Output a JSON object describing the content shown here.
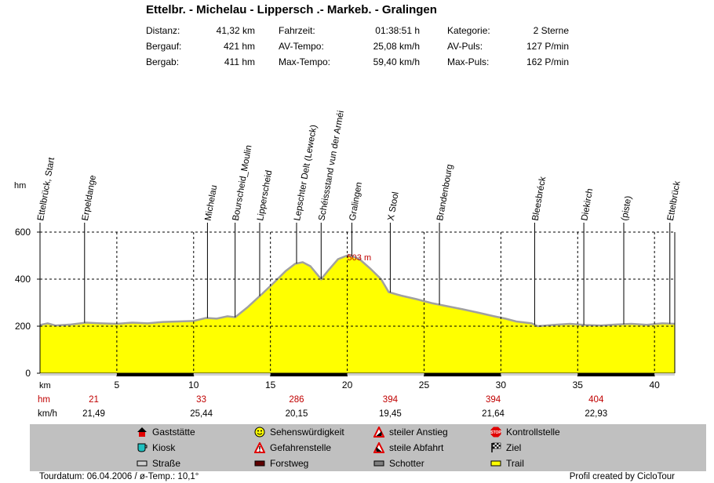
{
  "title": "Ettelbr. - Michelau - Lippersch .- Markeb. - Gralingen",
  "stats": {
    "col1": [
      {
        "label": "Distanz:",
        "value": "41,32 km"
      },
      {
        "label": "Bergauf:",
        "value": "421 hm"
      },
      {
        "label": "Bergab:",
        "value": "411 hm"
      }
    ],
    "col2": [
      {
        "label": "Fahrzeit:",
        "value": "01:38:51 h"
      },
      {
        "label": "AV-Tempo:",
        "value": "25,08 km/h"
      },
      {
        "label": "Max-Tempo:",
        "value": "59,40 km/h"
      }
    ],
    "col3": [
      {
        "label": "Kategorie:",
        "value": "2 Sterne"
      },
      {
        "label": "AV-Puls:",
        "value": "127 P/min"
      },
      {
        "label": "Max-Puls:",
        "value": "162 P/min"
      }
    ]
  },
  "chart_data": {
    "type": "area",
    "ylabel": "hm",
    "xlabel": "km",
    "ylim": [
      0,
      600
    ],
    "xlim": [
      0,
      41.32
    ],
    "yticks": [
      "0",
      "200",
      "400",
      "600"
    ],
    "xticks": [
      "5",
      "10",
      "15",
      "20",
      "25",
      "30",
      "35",
      "40"
    ],
    "max_label": "503 m",
    "max_at_km": 20.1,
    "fill_color": "#ffff00",
    "line_color": "#a0a0a0",
    "profile": [
      [
        0,
        205
      ],
      [
        0.5,
        212
      ],
      [
        1,
        203
      ],
      [
        2,
        207
      ],
      [
        3,
        215
      ],
      [
        4,
        212
      ],
      [
        5,
        210
      ],
      [
        6,
        215
      ],
      [
        7,
        212
      ],
      [
        8,
        218
      ],
      [
        9,
        220
      ],
      [
        10,
        222
      ],
      [
        10.8,
        235
      ],
      [
        11.5,
        232
      ],
      [
        12.2,
        242
      ],
      [
        12.7,
        238
      ],
      [
        13.5,
        280
      ],
      [
        14.5,
        340
      ],
      [
        15.3,
        390
      ],
      [
        16,
        435
      ],
      [
        16.6,
        465
      ],
      [
        17.1,
        472
      ],
      [
        17.6,
        455
      ],
      [
        18.3,
        400
      ],
      [
        18.8,
        440
      ],
      [
        19.4,
        485
      ],
      [
        20.1,
        503
      ],
      [
        20.8,
        485
      ],
      [
        21.5,
        445
      ],
      [
        22.2,
        400
      ],
      [
        22.7,
        345
      ],
      [
        23.5,
        330
      ],
      [
        24.5,
        315
      ],
      [
        25.5,
        298
      ],
      [
        26.5,
        285
      ],
      [
        27.5,
        272
      ],
      [
        28.5,
        258
      ],
      [
        29.5,
        243
      ],
      [
        30.3,
        232
      ],
      [
        31,
        220
      ],
      [
        32,
        212
      ],
      [
        32.4,
        200
      ],
      [
        33.5,
        206
      ],
      [
        34.5,
        210
      ],
      [
        35.5,
        205
      ],
      [
        36.5,
        203
      ],
      [
        37.5,
        207
      ],
      [
        38.5,
        210
      ],
      [
        39.5,
        206
      ],
      [
        40.5,
        212
      ],
      [
        41.32,
        210
      ]
    ],
    "surface_segments": [
      {
        "type": "Forstweg",
        "from": 5,
        "to": 10
      },
      {
        "type": "Forstweg",
        "from": 15,
        "to": 20
      },
      {
        "type": "Forstweg",
        "from": 25,
        "to": 30
      },
      {
        "type": "Forstweg",
        "from": 35,
        "to": 40
      }
    ],
    "waypoints": [
      {
        "name": "Ettelbrück, Start",
        "km": 0
      },
      {
        "name": "Erpeldange",
        "km": 2.9
      },
      {
        "name": "Michelau",
        "km": 10.9
      },
      {
        "name": "Bourscheid_Moulin",
        "km": 12.7
      },
      {
        "name": "Lipperscheid",
        "km": 14.3
      },
      {
        "name": "Lepschter Delt (Leweck)",
        "km": 16.7
      },
      {
        "name": "Schéissstand vun der Arméi",
        "km": 18.3
      },
      {
        "name": "Gralingen",
        "km": 20.3
      },
      {
        "name": "X Stool",
        "km": 22.8
      },
      {
        "name": "Brandenbourg",
        "km": 26
      },
      {
        "name": "Bleesbréck",
        "km": 32.2
      },
      {
        "name": "Diekirch",
        "km": 35.4
      },
      {
        "name": "(piste)",
        "km": 38
      },
      {
        "name": "Ettelbrück",
        "km": 41
      }
    ],
    "rows": [
      {
        "label": "hm",
        "values": [
          {
            "km": 3.5,
            "v": "21"
          },
          {
            "km": 10.5,
            "v": "33"
          },
          {
            "km": 16.7,
            "v": "286"
          },
          {
            "km": 22.8,
            "v": "394"
          },
          {
            "km": 29.5,
            "v": "394"
          },
          {
            "km": 36.2,
            "v": "404"
          }
        ]
      },
      {
        "label": "km/h",
        "values": [
          {
            "km": 3.5,
            "v": "21,49"
          },
          {
            "km": 10.5,
            "v": "25,44"
          },
          {
            "km": 16.7,
            "v": "20,15"
          },
          {
            "km": 22.8,
            "v": "19,45"
          },
          {
            "km": 29.5,
            "v": "21,64"
          },
          {
            "km": 36.2,
            "v": "22,93"
          }
        ]
      }
    ]
  },
  "legend": [
    {
      "icon": "house-icon",
      "label": "Gaststätte"
    },
    {
      "icon": "cup-icon",
      "label": "Kiosk"
    },
    {
      "icon": "road-icon",
      "label": "Straße"
    },
    {
      "icon": "smiley-icon",
      "label": "Sehenswürdigkeit"
    },
    {
      "icon": "warning-icon",
      "label": "Gefahrenstelle"
    },
    {
      "icon": "forest-path-icon",
      "label": "Forstweg"
    },
    {
      "icon": "climb-icon",
      "label": "steiler Anstieg"
    },
    {
      "icon": "descent-icon",
      "label": "steile Abfahrt"
    },
    {
      "icon": "gravel-icon",
      "label": "Schotter"
    },
    {
      "icon": "stop-icon",
      "label": "Kontrollstelle"
    },
    {
      "icon": "finish-flag-icon",
      "label": "Ziel"
    },
    {
      "icon": "trail-icon",
      "label": "Trail"
    }
  ],
  "footer": {
    "left": "Tourdatum: 06.04.2006  /  ø-Temp.: 10,1°",
    "right": "Profil created by CicloTour"
  }
}
